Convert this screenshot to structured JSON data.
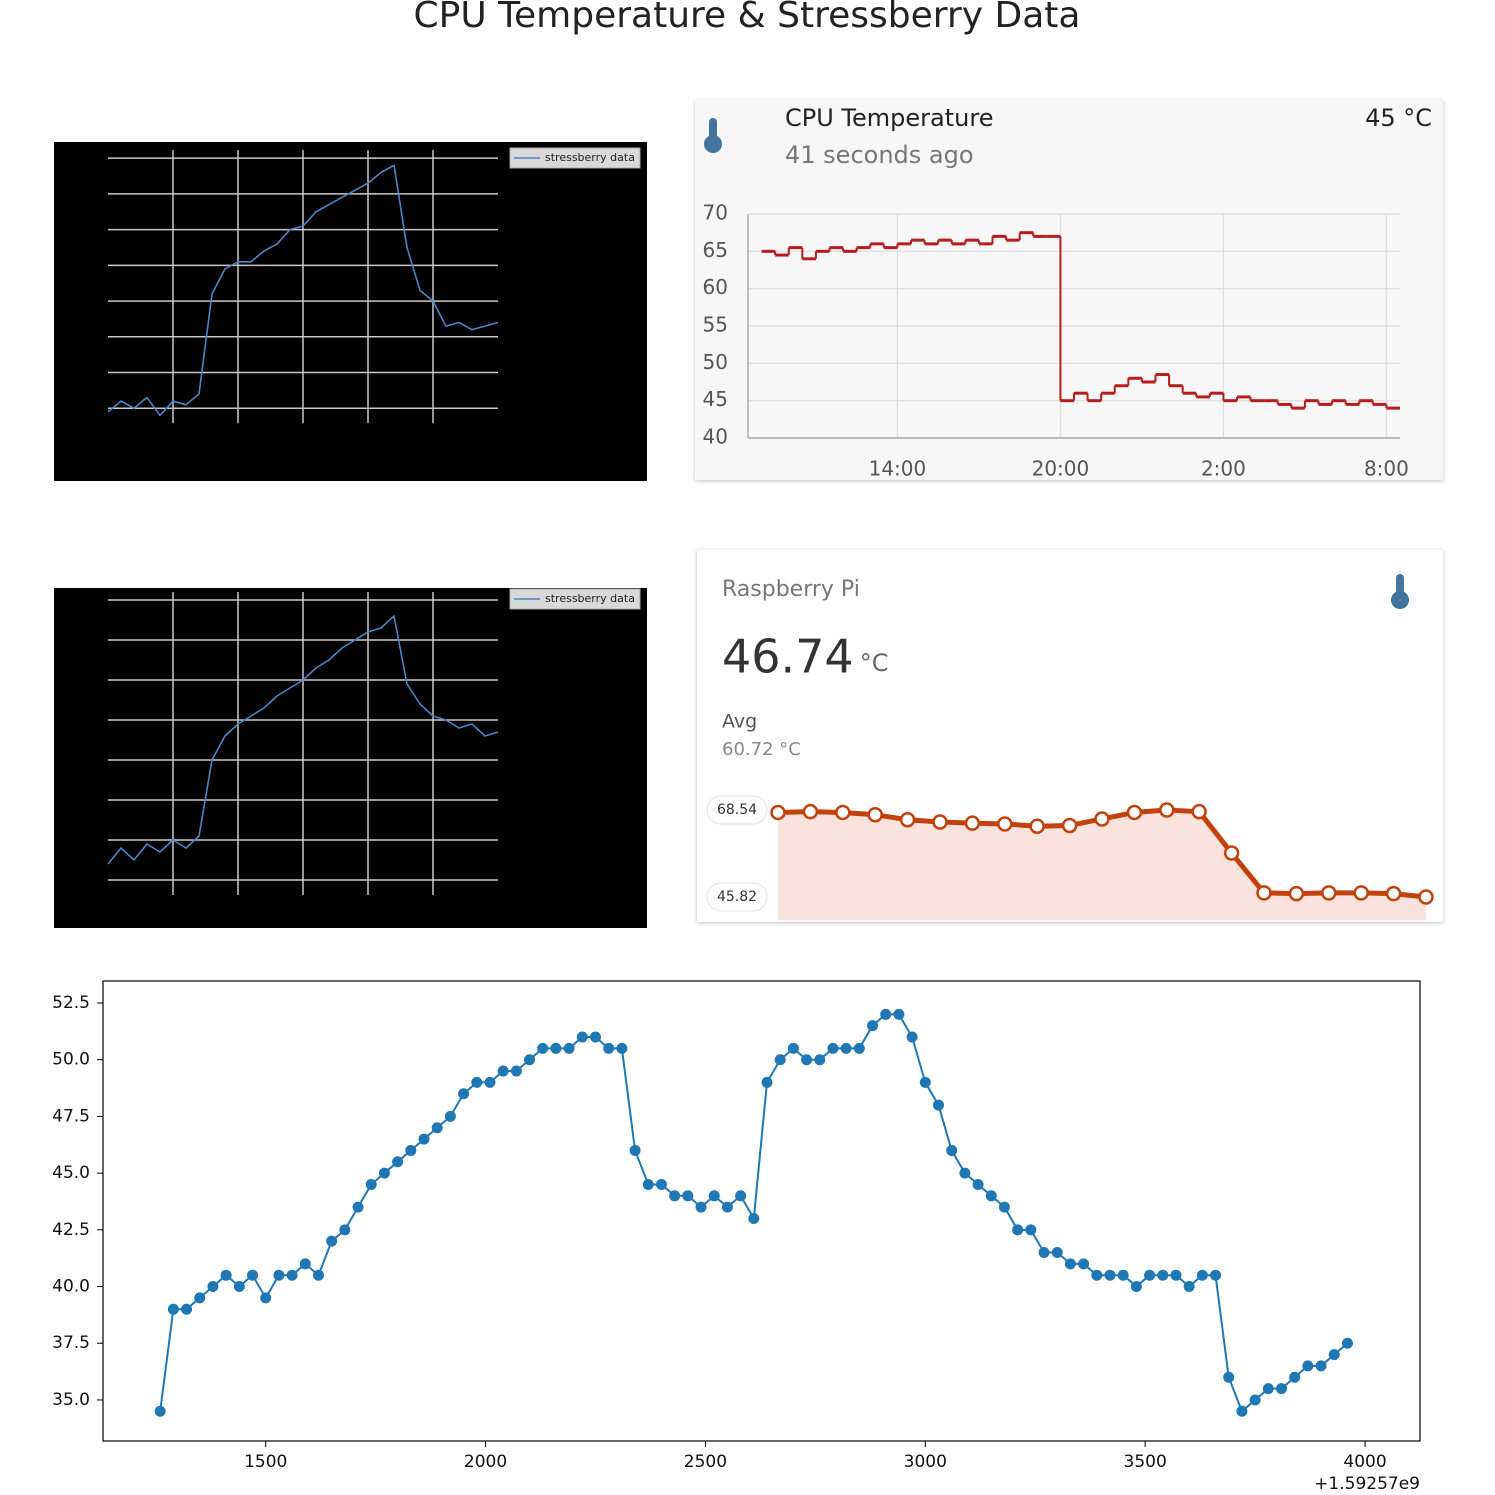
{
  "title": "CPU Temperature & Stressberry Data",
  "chart_data": [
    {
      "type": "line",
      "background": "#000000",
      "grid_color": "#c8c8c8",
      "legend": "upper right",
      "x": [
        0,
        0.2,
        0.4,
        0.6,
        0.8,
        1,
        1.2,
        1.4,
        1.6,
        1.8,
        2,
        2.2,
        2.4,
        2.6,
        2.8,
        3,
        3.2,
        3.4,
        3.6,
        3.8,
        4,
        4.2,
        4.4,
        4.6,
        4.8,
        5,
        5.2,
        5.4,
        5.6,
        5.8,
        6
      ],
      "xlim": [
        0,
        6
      ],
      "ylim": [
        0,
        8.2
      ],
      "xgrid": [
        1,
        2,
        3,
        4,
        5
      ],
      "ygrid": [
        1,
        2,
        3,
        4,
        5,
        6,
        7,
        8
      ],
      "series": [
        {
          "name": "stressberry data",
          "color": "#4a86c5",
          "values": [
            0.9,
            1.2,
            1.0,
            1.3,
            0.8,
            1.2,
            1.1,
            1.4,
            4.2,
            4.9,
            5.1,
            5.1,
            5.4,
            5.6,
            6.0,
            6.1,
            6.5,
            6.7,
            6.9,
            7.1,
            7.3,
            7.6,
            7.8,
            5.5,
            4.3,
            4.0,
            3.3,
            3.4,
            3.2,
            3.3,
            3.4
          ]
        }
      ]
    },
    {
      "type": "line",
      "background": "#000000",
      "grid_color": "#c8c8c8",
      "legend": "upper right",
      "x": [
        0,
        0.2,
        0.4,
        0.6,
        0.8,
        1,
        1.2,
        1.4,
        1.6,
        1.8,
        2,
        2.2,
        2.4,
        2.6,
        2.8,
        3,
        3.2,
        3.4,
        3.6,
        3.8,
        4,
        4.2,
        4.4,
        4.6,
        4.8,
        5,
        5.2,
        5.4,
        5.6,
        5.8,
        6
      ],
      "xlim": [
        0,
        6
      ],
      "ylim": [
        0,
        8.2
      ],
      "xgrid": [
        1,
        2,
        3,
        4,
        5
      ],
      "ygrid": [
        1,
        2,
        3,
        4,
        5,
        6,
        7,
        8
      ],
      "series": [
        {
          "name": "stressberry data",
          "color": "#4a86c5",
          "values": [
            1.4,
            1.8,
            1.5,
            1.9,
            1.7,
            2.0,
            1.8,
            2.1,
            4.0,
            4.6,
            4.9,
            5.1,
            5.3,
            5.6,
            5.8,
            6.0,
            6.3,
            6.5,
            6.8,
            7.0,
            7.2,
            7.3,
            7.6,
            5.9,
            5.4,
            5.1,
            5.0,
            4.8,
            4.9,
            4.6,
            4.7
          ]
        }
      ]
    },
    {
      "type": "line",
      "step": true,
      "grid": true,
      "color": "#b71c1c",
      "title": "CPU Temperature",
      "subtitle": "41 seconds ago",
      "state": "45 °C",
      "x": [
        9,
        9.5,
        10,
        10.5,
        11,
        11.5,
        12,
        12.5,
        13,
        13.5,
        14,
        14.5,
        15,
        15.5,
        16,
        16.5,
        17,
        17.5,
        18,
        18.5,
        19,
        19.5,
        20,
        20.5,
        21,
        21.5,
        22,
        22.5,
        23,
        23.5,
        24,
        24.5,
        25,
        25.5,
        26,
        26.5,
        27,
        27.5,
        28,
        28.5,
        29,
        29.5,
        30,
        30.5,
        31,
        31.5,
        32
      ],
      "values": [
        65,
        64.5,
        65.5,
        64,
        65,
        65.5,
        65,
        65.5,
        66,
        65.5,
        66,
        66.5,
        66,
        66.5,
        66,
        66.5,
        66,
        67,
        66.5,
        67.5,
        67,
        67,
        45,
        46,
        45,
        46,
        47,
        48,
        47.5,
        48.5,
        47,
        46,
        45.5,
        46,
        45,
        45.5,
        45,
        45,
        44.5,
        44,
        45,
        44.5,
        45,
        44.5,
        45,
        44.5,
        44
      ],
      "xlim": [
        8.5,
        32.5
      ],
      "xticks": [
        {
          "value": 14,
          "label": "14:00"
        },
        {
          "value": 20,
          "label": "20:00"
        },
        {
          "value": 26,
          "label": "2:00"
        },
        {
          "value": 32,
          "label": "8:00"
        }
      ],
      "ylim": [
        40,
        70
      ],
      "yticks": [
        40,
        45,
        50,
        55,
        60,
        65,
        70
      ]
    },
    {
      "type": "area",
      "color": "#c2410c",
      "fill": "#fbe3dd",
      "title": "Raspberry Pi",
      "state": 46.74,
      "unit": "°C",
      "avg_label": "Avg",
      "avg": "60.72 °C",
      "values": [
        67.9,
        68.1,
        67.9,
        67.3,
        66.0,
        65.4,
        65.1,
        64.9,
        64.3,
        64.5,
        66.2,
        67.9,
        68.54,
        68.1,
        57.3,
        46.9,
        46.7,
        46.9,
        46.9,
        46.7,
        45.82
      ],
      "ylim": [
        45.82,
        68.54
      ],
      "yticks": [
        45.82,
        68.54
      ]
    },
    {
      "type": "line",
      "marker": "o",
      "color": "#1f77b4",
      "x": [
        1260,
        1290,
        1320,
        1350,
        1380,
        1410,
        1440,
        1470,
        1500,
        1530,
        1560,
        1590,
        1620,
        1650,
        1680,
        1710,
        1740,
        1770,
        1800,
        1830,
        1860,
        1890,
        1920,
        1950,
        1980,
        2010,
        2040,
        2070,
        2100,
        2130,
        2160,
        2190,
        2220,
        2250,
        2280,
        2310,
        2340,
        2370,
        2400,
        2430,
        2460,
        2490,
        2520,
        2550,
        2580,
        2610,
        2640,
        2670,
        2700,
        2730,
        2760,
        2790,
        2820,
        2850,
        2880,
        2910,
        2940,
        2970,
        3000,
        3030,
        3060,
        3090,
        3120,
        3150,
        3180,
        3210,
        3240,
        3270,
        3300,
        3330,
        3360,
        3390,
        3420,
        3450,
        3480,
        3510,
        3540,
        3570,
        3600,
        3630,
        3660,
        3690,
        3720,
        3750,
        3780,
        3810,
        3840,
        3870,
        3900,
        3930,
        3960
      ],
      "values": [
        34.5,
        39.0,
        39.0,
        39.5,
        40.0,
        40.5,
        40.0,
        40.5,
        39.5,
        40.5,
        40.5,
        41.0,
        40.5,
        42.0,
        42.5,
        43.5,
        44.5,
        45.0,
        45.5,
        46.0,
        46.5,
        47.0,
        47.5,
        48.5,
        49.0,
        49.0,
        49.5,
        49.5,
        50.0,
        50.5,
        50.5,
        50.5,
        51.0,
        51.0,
        50.5,
        50.5,
        46.0,
        44.5,
        44.5,
        44.0,
        44.0,
        43.5,
        44.0,
        43.5,
        44.0,
        43.0,
        49.0,
        50.0,
        50.5,
        50.0,
        50.0,
        50.5,
        50.5,
        50.5,
        51.5,
        52.0,
        52.0,
        51.0,
        49.0,
        48.0,
        46.0,
        45.0,
        44.5,
        44.0,
        43.5,
        42.5,
        42.5,
        41.5,
        41.5,
        41.0,
        41.0,
        40.5,
        40.5,
        40.5,
        40.0,
        40.5,
        40.5,
        40.5,
        40.0,
        40.5,
        40.5,
        36.0,
        34.5,
        35.0,
        35.5,
        35.5,
        36.0,
        36.5,
        36.5,
        37.0,
        37.5
      ],
      "xlim": [
        1130,
        4125
      ],
      "xticks": [
        1500,
        2000,
        2500,
        3000,
        3500,
        4000
      ],
      "x_offset": "+1.59257e9",
      "ylim": [
        33.19,
        53.47
      ],
      "yticks": [
        {
          "value": 35,
          "label": "35.0"
        },
        {
          "value": 37.5,
          "label": "37.5"
        },
        {
          "value": 40,
          "label": "40.0"
        },
        {
          "value": 42.5,
          "label": "42.5"
        },
        {
          "value": 45,
          "label": "45.0"
        },
        {
          "value": 47.5,
          "label": "47.5"
        },
        {
          "value": 50,
          "label": "50.0"
        },
        {
          "value": 52.5,
          "label": "52.5"
        }
      ]
    }
  ]
}
